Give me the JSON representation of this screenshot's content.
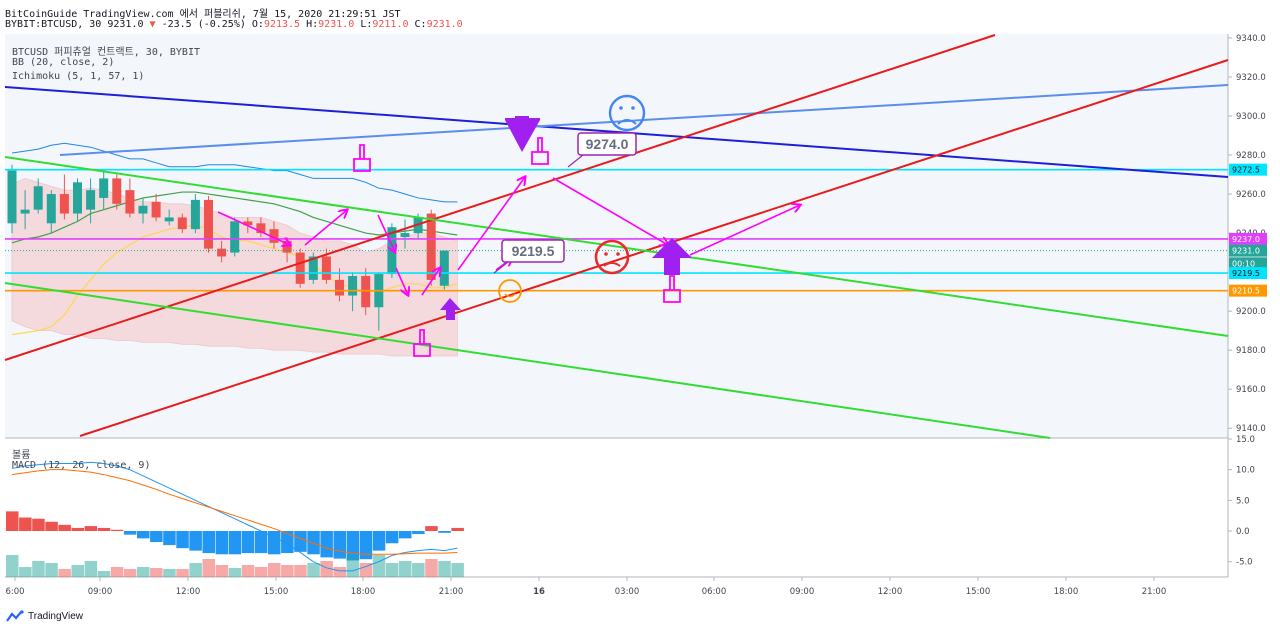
{
  "header": {
    "line1": "BitCoinGuide TradingView.com 에서 퍼블리쉬, 7월 15, 2020 21:29:51 JST",
    "symbol": "BYBIT:BTCUSD, 30",
    "last": "9231.0",
    "change": "-23.5 (-0.25%)",
    "o_label": "O:",
    "o": "9213.5",
    "h_label": "H:",
    "h": "9231.0",
    "l_label": "L:",
    "l": "9211.0",
    "c_label": "C:",
    "c": "9231.0"
  },
  "legend": {
    "title": "BTCUSD 퍼피츄얼 컨트랙트, 30, BYBIT",
    "bb": "BB (20, close, 2)",
    "ichimoku": "Ichimoku (5, 1, 57, 1)",
    "volume": "볼륨",
    "macd": "MACD (12, 26, close, 9)"
  },
  "footer": {
    "brand": "TradingView"
  },
  "chart_data": [
    {
      "type": "candlestick",
      "symbol": "BTCUSD 퍼피츄얼 컨트랙트, 30, BYBIT",
      "ylim": [
        9135,
        9342
      ],
      "y_ticks": [
        9140,
        9160,
        9180,
        9200,
        9220,
        9240,
        9260,
        9280,
        9300,
        9320,
        9340
      ],
      "x_ticks": [
        "6:00",
        "09:00",
        "12:00",
        "15:00",
        "18:00",
        "21:00",
        "16",
        "03:00",
        "06:00",
        "09:00",
        "12:00",
        "15:00",
        "18:00",
        "21:00"
      ],
      "candles": [
        {
          "o": 9245,
          "h": 9275,
          "l": 9240,
          "c": 9272
        },
        {
          "o": 9250,
          "h": 9262,
          "l": 9242,
          "c": 9252
        },
        {
          "o": 9252,
          "h": 9268,
          "l": 9250,
          "c": 9264
        },
        {
          "o": 9245,
          "h": 9262,
          "l": 9240,
          "c": 9260
        },
        {
          "o": 9260,
          "h": 9270,
          "l": 9247,
          "c": 9250
        },
        {
          "o": 9250,
          "h": 9268,
          "l": 9246,
          "c": 9266
        },
        {
          "o": 9252,
          "h": 9268,
          "l": 9245,
          "c": 9262
        },
        {
          "o": 9258,
          "h": 9272,
          "l": 9252,
          "c": 9268
        },
        {
          "o": 9268,
          "h": 9270,
          "l": 9252,
          "c": 9255
        },
        {
          "o": 9262,
          "h": 9268,
          "l": 9248,
          "c": 9250
        },
        {
          "o": 9250,
          "h": 9258,
          "l": 9245,
          "c": 9254
        },
        {
          "o": 9256,
          "h": 9260,
          "l": 9246,
          "c": 9248
        },
        {
          "o": 9246,
          "h": 9252,
          "l": 9244,
          "c": 9248
        },
        {
          "o": 9248,
          "h": 9250,
          "l": 9240,
          "c": 9242
        },
        {
          "o": 9242,
          "h": 9260,
          "l": 9240,
          "c": 9257
        },
        {
          "o": 9257,
          "h": 9259,
          "l": 9230,
          "c": 9232
        },
        {
          "o": 9232,
          "h": 9236,
          "l": 9225,
          "c": 9228
        },
        {
          "o": 9230,
          "h": 9248,
          "l": 9228,
          "c": 9246
        },
        {
          "o": 9246,
          "h": 9248,
          "l": 9240,
          "c": 9244
        },
        {
          "o": 9245,
          "h": 9248,
          "l": 9238,
          "c": 9240
        },
        {
          "o": 9242,
          "h": 9246,
          "l": 9232,
          "c": 9235
        },
        {
          "o": 9236,
          "h": 9238,
          "l": 9225,
          "c": 9230
        },
        {
          "o": 9230,
          "h": 9232,
          "l": 9212,
          "c": 9214
        },
        {
          "o": 9216,
          "h": 9230,
          "l": 9214,
          "c": 9228
        },
        {
          "o": 9228,
          "h": 9232,
          "l": 9214,
          "c": 9216
        },
        {
          "o": 9216,
          "h": 9222,
          "l": 9205,
          "c": 9208
        },
        {
          "o": 9208,
          "h": 9220,
          "l": 9200,
          "c": 9218
        },
        {
          "o": 9218,
          "h": 9222,
          "l": 9198,
          "c": 9202
        },
        {
          "o": 9202,
          "h": 9220,
          "l": 9190,
          "c": 9219
        },
        {
          "o": 9219,
          "h": 9245,
          "l": 9217,
          "c": 9243
        },
        {
          "o": 9238,
          "h": 9247,
          "l": 9232,
          "c": 9240
        },
        {
          "o": 9240,
          "h": 9250,
          "l": 9237,
          "c": 9248
        },
        {
          "o": 9250,
          "h": 9252,
          "l": 9213,
          "c": 9216
        },
        {
          "o": 9213,
          "h": 9231,
          "l": 9211,
          "c": 9231
        }
      ],
      "price_labels": [
        {
          "text": "9272.5",
          "color": "#00e5ff"
        },
        {
          "text": "9237.0",
          "color": "#e040fb"
        },
        {
          "text": "9231.0",
          "color": "#26a69a"
        },
        {
          "text": "00:10",
          "color": "#26a69a"
        },
        {
          "text": "9219.5",
          "color": "#00e5ff"
        },
        {
          "text": "9210.5",
          "color": "#ff9800"
        }
      ],
      "annotations": [
        "9274.0",
        "9219.5"
      ]
    },
    {
      "type": "bar",
      "name": "MACD (12, 26, close, 9)",
      "ylim": [
        -7.5,
        15
      ],
      "y_ticks": [
        15.0,
        10.0,
        5.0,
        0.0,
        -5.0
      ],
      "y_tick_labels": [
        "15.0",
        "10.0",
        "5.0",
        "0.0",
        "-5.0"
      ],
      "histogram": [
        3.2,
        2.2,
        2.0,
        1.5,
        1.0,
        0.5,
        0.8,
        0.5,
        0.2,
        -0.6,
        -1.2,
        -1.8,
        -2.3,
        -2.8,
        -3.2,
        -3.6,
        -3.8,
        -3.8,
        -3.6,
        -3.6,
        -3.8,
        -3.6,
        -3.4,
        -3.8,
        -4.3,
        -4.5,
        -4.8,
        -4.6,
        -3.2,
        -2.0,
        -1.2,
        -0.5,
        0.8,
        -0.3,
        0.5
      ],
      "macd": [
        10.2,
        10.6,
        10.8,
        11.0,
        11.0,
        11.0,
        11.2,
        11.0,
        10.6,
        10.0,
        9.0,
        8.0,
        7.0,
        6.0,
        5.0,
        4.0,
        3.0,
        2.0,
        1.0,
        0.0,
        -1.0,
        -2.0,
        -3.5,
        -5.0,
        -6.0,
        -6.5,
        -6.5,
        -5.8,
        -5.0,
        -4.0,
        -3.5,
        -3.2,
        -3.0,
        -3.2,
        -2.8
      ],
      "signal": [
        9.2,
        9.5,
        9.8,
        10.0,
        10.0,
        9.8,
        9.6,
        9.2,
        8.7,
        8.2,
        7.5,
        6.8,
        6.0,
        5.3,
        4.6,
        3.9,
        3.2,
        2.5,
        1.8,
        1.1,
        0.4,
        -0.4,
        -1.2,
        -2.0,
        -2.8,
        -3.3,
        -3.6,
        -3.8,
        -3.8,
        -3.8,
        -3.7,
        -3.6,
        -3.6,
        -3.6,
        -3.5
      ]
    }
  ]
}
